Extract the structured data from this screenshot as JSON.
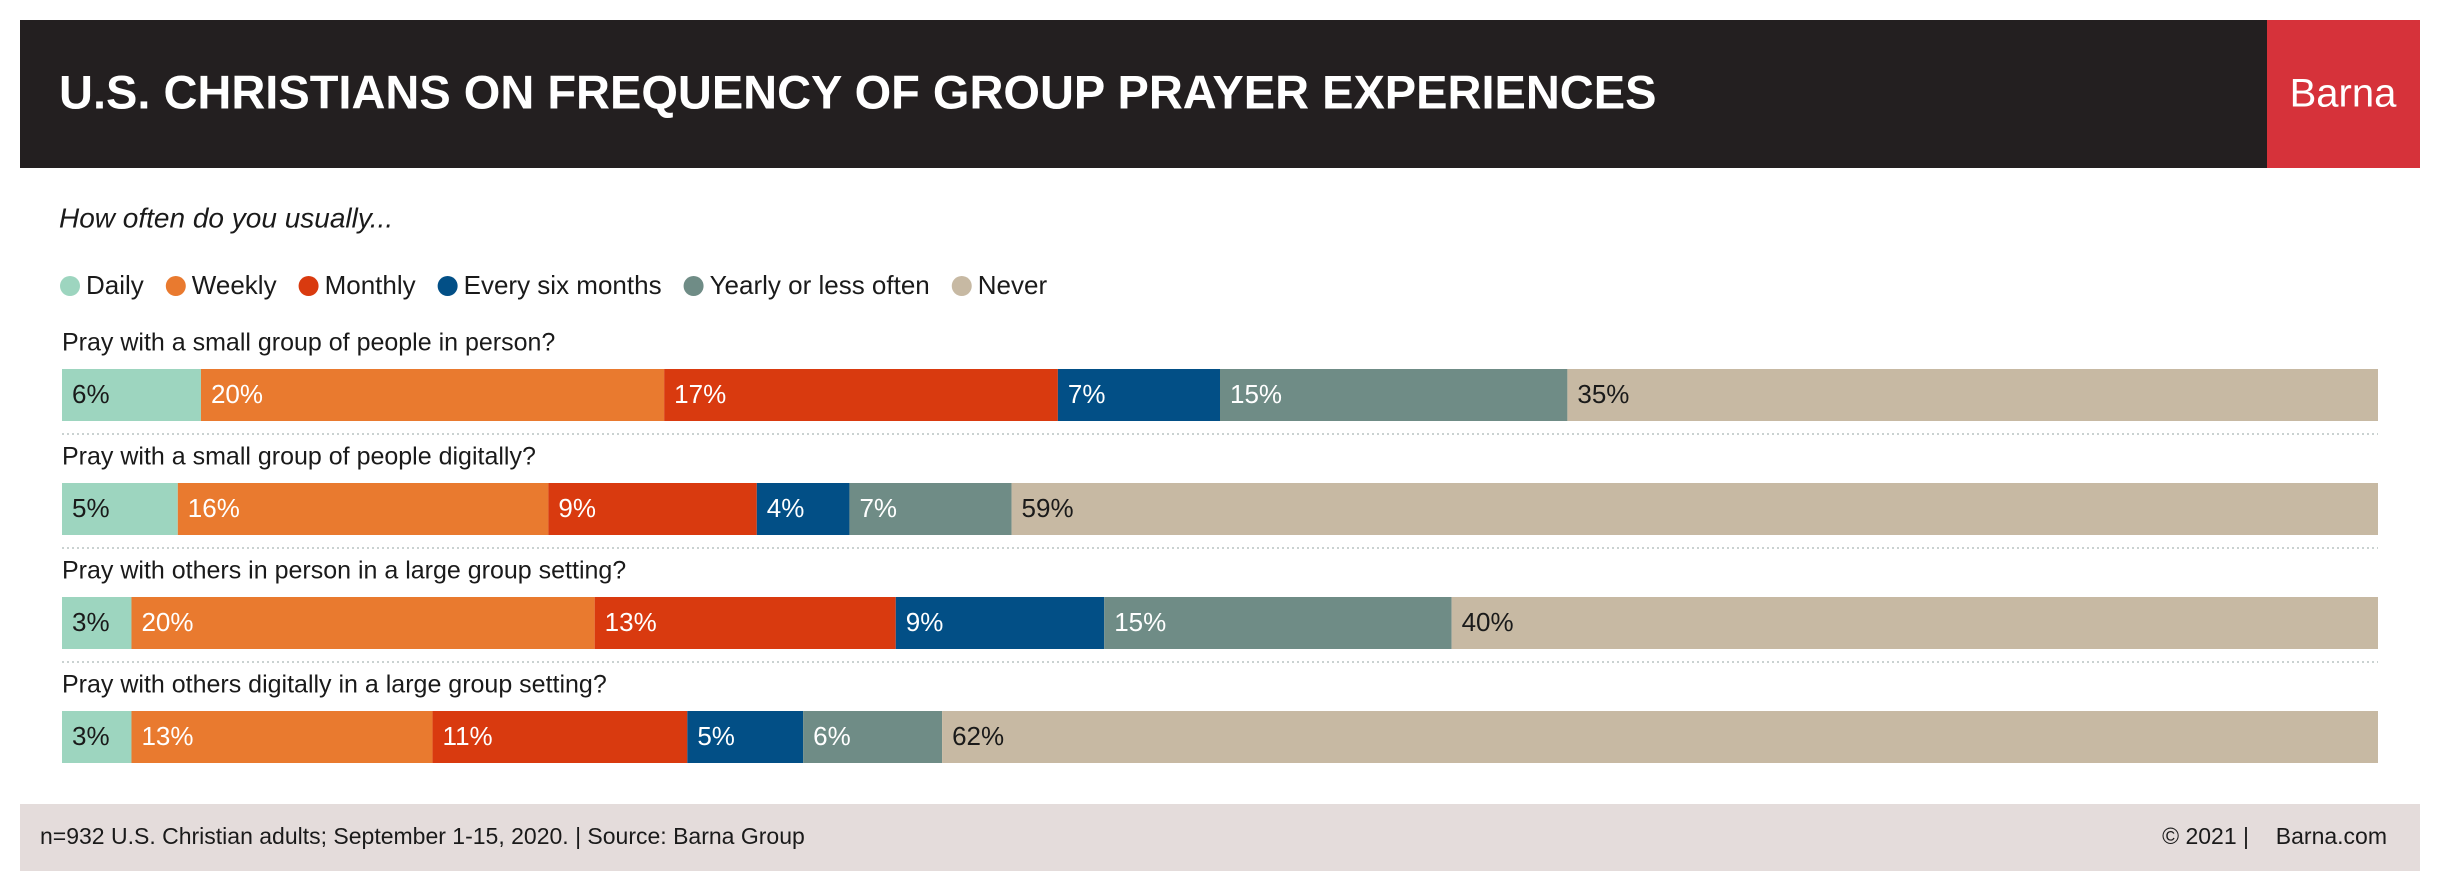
{
  "header": {
    "brand": "Barna"
  },
  "chart_data": {
    "type": "stacked-bar-horizontal",
    "title": "U.S. CHRISTIANS ON FREQUENCY OF GROUP PRAYER EXPERIENCES",
    "subtitle": "How often do you usually...",
    "categories": [
      "Pray with a small group of people in person?",
      "Pray with a small group of people digitally?",
      "Pray with others in person in a large group setting?",
      "Pray with others digitally in a large group setting?"
    ],
    "xlim": [
      0,
      100
    ],
    "series": [
      {
        "name": "Daily",
        "color": "#9dd5bf",
        "label_color": "#1a1a1a",
        "values": [
          6,
          5,
          3,
          3
        ],
        "value_labels": [
          "6%",
          "5%",
          "3%",
          "3%"
        ]
      },
      {
        "name": "Weekly",
        "color": "#e97a2f",
        "label_color": "#ffffff",
        "values": [
          20,
          16,
          20,
          13
        ],
        "value_labels": [
          "20%",
          "16%",
          "20%",
          "13%"
        ]
      },
      {
        "name": "Monthly",
        "color": "#d93a0f",
        "label_color": "#ffffff",
        "values": [
          17,
          9,
          13,
          11
        ],
        "value_labels": [
          "17%",
          "9%",
          "13%",
          "11%"
        ]
      },
      {
        "name": "Every six months",
        "color": "#024f86",
        "label_color": "#ffffff",
        "values": [
          7,
          4,
          9,
          5
        ],
        "value_labels": [
          "7%",
          "4%",
          "9%",
          "5%"
        ]
      },
      {
        "name": "Yearly or less often",
        "color": "#6f8c86",
        "label_color": "#ffffff",
        "values": [
          15,
          7,
          15,
          6
        ],
        "value_labels": [
          "15%",
          "7%",
          "15%",
          "6%"
        ]
      },
      {
        "name": "Never",
        "color": "#c7b9a3",
        "label_color": "#1a1a1a",
        "values": [
          35,
          59,
          40,
          62
        ],
        "value_labels": [
          "35%",
          "59%",
          "40%",
          "62%"
        ]
      }
    ]
  },
  "footer": {
    "source": "n=932 U.S. Christian adults; September 1-15, 2020. | Source: Barna Group",
    "copyright": "© 2021 |",
    "site": "Barna.com"
  }
}
